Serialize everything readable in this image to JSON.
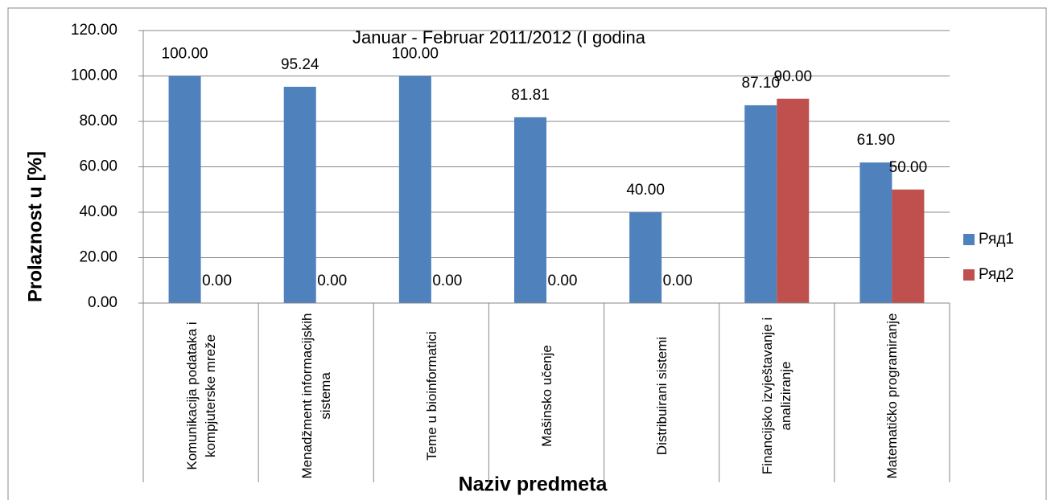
{
  "chart_data": {
    "type": "bar",
    "title": "Januar - Februar 2011/2012 (I godina",
    "y_label": "Prolaznost u [%]",
    "x_label": "Naziv predmeta",
    "categories": [
      "Komunikacija podataka i kompjuterske mreže",
      "Menadžment informacijskih sistema",
      "Teme u bioinformatici",
      "Mašinsko učenje",
      "Distribuirani sistemi",
      "Financijsko izvještavanje i analiziranje",
      "Matematičko programiranje"
    ],
    "series": [
      {
        "name": "Ряд1",
        "color": "#4f81bd",
        "values": [
          100,
          95.24,
          100,
          81.81,
          40,
          87.1,
          61.9
        ],
        "value_labels": [
          "100.00",
          "95.24",
          "100.00",
          "81.81",
          "40.00",
          "87.10",
          "61.90"
        ]
      },
      {
        "name": "Ряд2",
        "color": "#c0504d",
        "values": [
          0,
          0,
          0,
          0,
          0,
          90,
          50
        ],
        "value_labels": [
          "0.00",
          "0.00",
          "0.00",
          "0.00",
          "0.00",
          "90.00",
          "50.00"
        ]
      }
    ],
    "ylim": [
      0,
      120
    ],
    "yticks": [
      {
        "value": 0,
        "label": "0.00"
      },
      {
        "value": 20,
        "label": "20.00"
      },
      {
        "value": 40,
        "label": "40.00"
      },
      {
        "value": 60,
        "label": "60.00"
      },
      {
        "value": 80,
        "label": "80.00"
      },
      {
        "value": 100,
        "label": "100.00"
      },
      {
        "value": 120,
        "label": "120.00"
      }
    ],
    "grid": true,
    "legend": "right"
  }
}
